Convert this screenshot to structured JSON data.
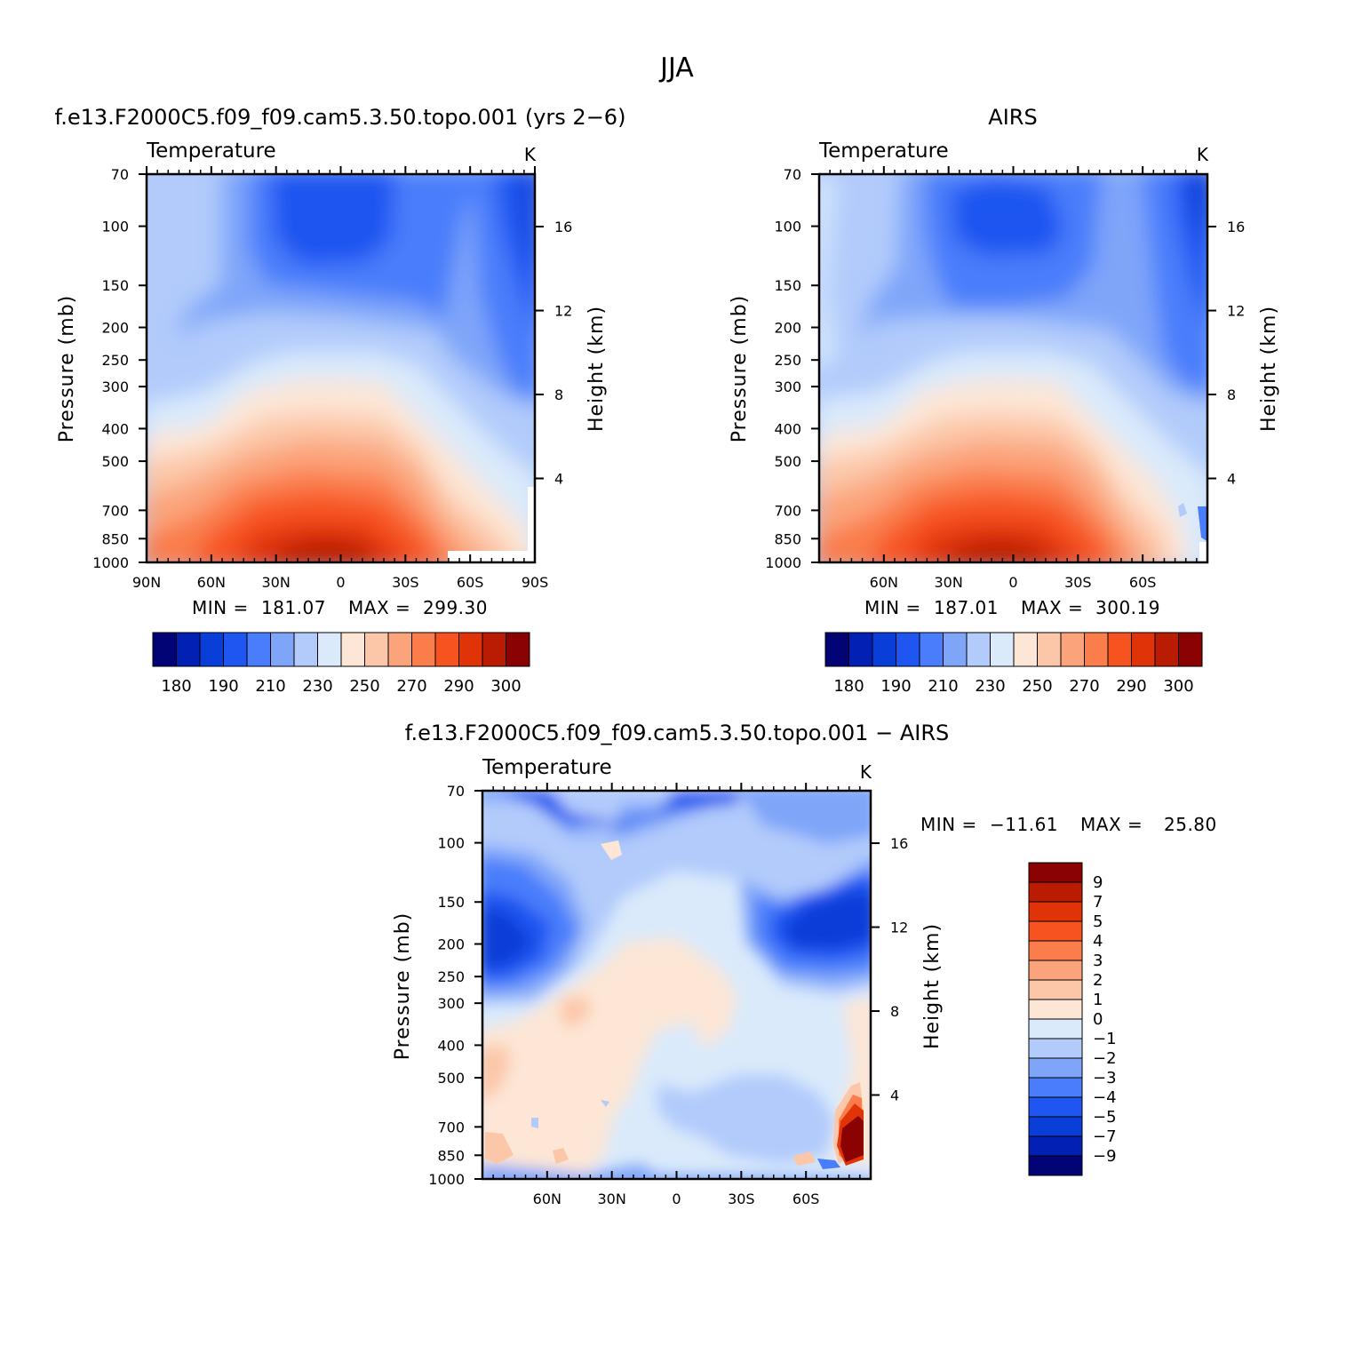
{
  "figure": {
    "title": "JJA"
  },
  "chart_data": [
    {
      "type": "heatmap",
      "title": "f.e13.F2000C5.f09_f09.cam5.3.50.topo.001 (yrs 2−6)",
      "subtitle": "Temperature",
      "units": "K",
      "ylabel": "Pressure (mb)",
      "y2label": "Height (km)",
      "x_ticks": [
        "90N",
        "60N",
        "30N",
        "0",
        "30S",
        "60S",
        "90S"
      ],
      "x_values": [
        90,
        60,
        30,
        0,
        -30,
        -60,
        -90
      ],
      "y_ticks": [
        "70",
        "100",
        "150",
        "200",
        "250",
        "300",
        "400",
        "500",
        "700",
        "850",
        "1000"
      ],
      "y_values": [
        70,
        100,
        150,
        200,
        250,
        300,
        400,
        500,
        700,
        850,
        1000
      ],
      "y2_ticks": [
        "4",
        "8",
        "12",
        "16"
      ],
      "y2_values": [
        4,
        8,
        12,
        16
      ],
      "stats": {
        "min_label": "MIN =",
        "min": "181.07",
        "max_label": "MAX =",
        "max": "299.30"
      },
      "colorbar": {
        "levels": [
          180,
          185,
          190,
          200,
          210,
          220,
          230,
          240,
          250,
          260,
          270,
          280,
          290,
          295,
          300
        ],
        "labels": [
          "180",
          "190",
          "210",
          "230",
          "250",
          "270",
          "290",
          "300"
        ]
      }
    },
    {
      "type": "heatmap",
      "title": "AIRS",
      "subtitle": "Temperature",
      "units": "K",
      "ylabel": "Pressure (mb)",
      "y2label": "Height (km)",
      "x_ticks": [
        "60N",
        "30N",
        "0",
        "30S",
        "60S"
      ],
      "x_values": [
        60,
        30,
        0,
        -30,
        -60
      ],
      "y_ticks": [
        "70",
        "100",
        "150",
        "200",
        "250",
        "300",
        "400",
        "500",
        "700",
        "850",
        "1000"
      ],
      "y_values": [
        70,
        100,
        150,
        200,
        250,
        300,
        400,
        500,
        700,
        850,
        1000
      ],
      "y2_ticks": [
        "4",
        "8",
        "12",
        "16"
      ],
      "y2_values": [
        4,
        8,
        12,
        16
      ],
      "stats": {
        "min_label": "MIN =",
        "min": "187.01",
        "max_label": "MAX =",
        "max": "300.19"
      },
      "colorbar": {
        "levels": [
          180,
          185,
          190,
          200,
          210,
          220,
          230,
          240,
          250,
          260,
          270,
          280,
          290,
          295,
          300
        ],
        "labels": [
          "180",
          "190",
          "210",
          "230",
          "250",
          "270",
          "290",
          "300"
        ]
      }
    },
    {
      "type": "heatmap",
      "title": "f.e13.F2000C5.f09_f09.cam5.3.50.topo.001 − AIRS",
      "subtitle": "Temperature",
      "units": "K",
      "ylabel": "Pressure (mb)",
      "y2label": "Height (km)",
      "x_ticks": [
        "60N",
        "30N",
        "0",
        "30S",
        "60S"
      ],
      "x_values": [
        60,
        30,
        0,
        -30,
        -60
      ],
      "y_ticks": [
        "70",
        "100",
        "150",
        "200",
        "250",
        "300",
        "400",
        "500",
        "700",
        "850",
        "1000"
      ],
      "y_values": [
        70,
        100,
        150,
        200,
        250,
        300,
        400,
        500,
        700,
        850,
        1000
      ],
      "y2_ticks": [
        "4",
        "8",
        "12",
        "16"
      ],
      "y2_values": [
        4,
        8,
        12,
        16
      ],
      "stats": {
        "min_label": "MIN =",
        "min": "−11.61",
        "max_label": "MAX =",
        "max": "25.80"
      },
      "colorbar": {
        "levels": [
          9,
          7,
          5,
          4,
          3,
          2,
          1,
          0,
          -1,
          -2,
          -3,
          -4,
          -5,
          -7,
          -9
        ],
        "labels": [
          "9",
          "7",
          "5",
          "4",
          "3",
          "2",
          "1",
          "0",
          "−1",
          "−2",
          "−3",
          "−4",
          "−5",
          "−7",
          "−9"
        ]
      }
    }
  ],
  "colors": {
    "temperature_palette": [
      "#020374",
      "#0320b4",
      "#0a3ed8",
      "#1f55f0",
      "#4a7dfb",
      "#7fa5f9",
      "#b2cbfb",
      "#daeafb",
      "#fde6d6",
      "#fcc7a9",
      "#fba47c",
      "#fa7d4b",
      "#f75321",
      "#e03408",
      "#b91c02",
      "#8a0202"
    ],
    "difference_palette": [
      "#8a0202",
      "#b91c02",
      "#e03408",
      "#f75321",
      "#fa7d4b",
      "#fba47c",
      "#fcc7a9",
      "#fde6d6",
      "#daeafb",
      "#b2cbfb",
      "#7fa5f9",
      "#4a7dfb",
      "#1f55f0",
      "#0a3ed8",
      "#0320b4",
      "#020374"
    ]
  }
}
